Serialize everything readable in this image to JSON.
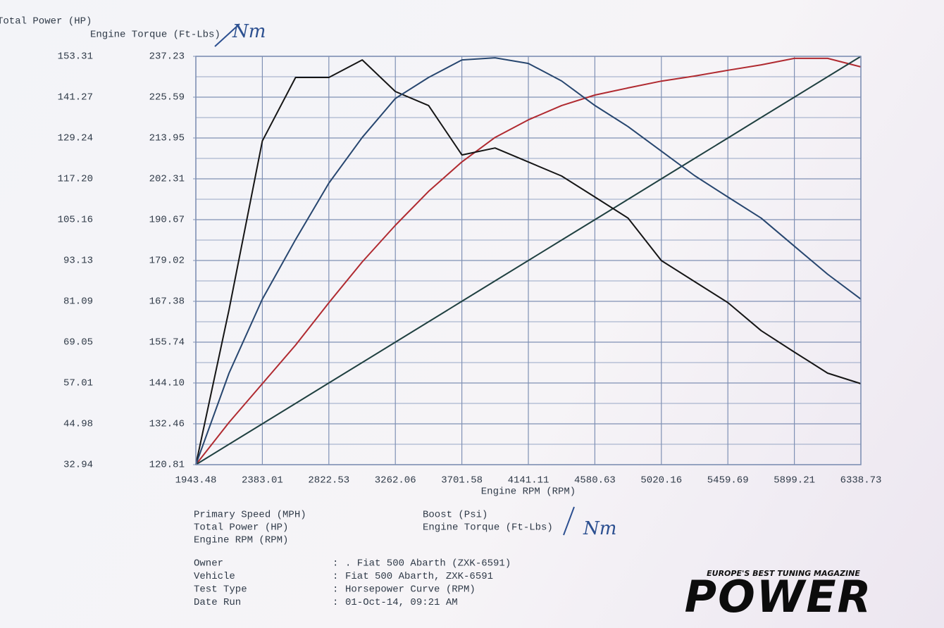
{
  "chart_data": {
    "type": "line",
    "y_axis_label": "Total Power (HP)",
    "y2_axis_label": "Engine Torque (Ft-Lbs)",
    "x_axis_label": "Engine RPM (RPM)",
    "annotations": [
      "Nm",
      "Nm"
    ],
    "xlim": [
      1943.48,
      6338.73
    ],
    "xticks": [
      1943.48,
      2383.01,
      2822.53,
      3262.06,
      3701.58,
      4141.11,
      4580.63,
      5020.16,
      5459.69,
      5899.21,
      6338.73
    ],
    "ylim": [
      32.94,
      153.31
    ],
    "yticks": [
      32.94,
      44.98,
      57.01,
      69.05,
      81.09,
      93.13,
      105.16,
      {
        "value": 117.2,
        "label": "117.20"
      },
      129.24,
      141.27,
      153.31
    ],
    "y2lim": [
      120.81,
      237.23
    ],
    "y2ticks": [
      120.81,
      132.46,
      {
        "value": 144.1,
        "label": "144.10"
      },
      155.74,
      167.38,
      179.02,
      190.67,
      202.31,
      213.95,
      225.59,
      237.23
    ],
    "grid": true,
    "x": [
      1943.48,
      2163,
      2383,
      2603,
      2823,
      3043,
      3262,
      3482,
      3702,
      3921,
      4141,
      4361,
      4581,
      4800,
      5020,
      5240,
      5460,
      5680,
      5899,
      6119,
      6339
    ],
    "extra_legend": [
      "Primary Speed (MPH)"
    ],
    "series": [
      {
        "name": "Total Power (HP)",
        "color": "#b02a30",
        "values": [
          32.94,
          45.4,
          56.8,
          68.2,
          80.7,
          92.7,
          103.5,
          113.5,
          122.2,
          129.4,
          134.6,
          138.8,
          141.9,
          144.0,
          146.0,
          147.5,
          149.2,
          150.8,
          152.7,
          152.7,
          150.2
        ]
      },
      {
        "name": "Engine RPM (RPM)",
        "color": "#1f4040",
        "axis": "x",
        "values": [
          1943.48,
          2163,
          2383,
          2603,
          2823,
          3043,
          3262,
          3482,
          3702,
          3921,
          4141,
          4361,
          4581,
          4800,
          5020,
          5240,
          5460,
          5680,
          5899,
          6119,
          6339
        ]
      },
      {
        "name": "Boost (Psi)",
        "color": "#151515",
        "axis": "y2",
        "values": [
          120.81,
          164.97,
          213.1,
          231.2,
          231.2,
          236.2,
          227.2,
          223.2,
          209.1,
          211.1,
          207.1,
          203.1,
          197.1,
          191.1,
          179.0,
          173.0,
          167.0,
          159.0,
          152.9,
          146.9,
          143.9
        ]
      },
      {
        "name": "Engine Torque (Ft-Lbs)",
        "color": "#27466f",
        "axis": "y2",
        "values": [
          120.81,
          146.9,
          168.0,
          185.0,
          201.1,
          214.1,
          225.2,
          231.2,
          236.2,
          236.8,
          235.2,
          230.2,
          223.2,
          217.2,
          210.2,
          203.2,
          197.1,
          191.1,
          183.1,
          175.1,
          168.0
        ]
      }
    ]
  },
  "info": {
    "rows": [
      [
        "Owner",
        ". Fiat 500 Abarth (ZXK-6591)"
      ],
      [
        "Vehicle",
        "Fiat 500 Abarth, ZXK-6591"
      ],
      [
        "Test Type",
        "Horsepower Curve (RPM)"
      ],
      [
        "Date Run",
        "01-Oct-14, 09:21 AM"
      ]
    ]
  },
  "logo": {
    "tagline": "EUROPE'S BEST TUNING MAGAZINE",
    "name": "POWER"
  }
}
